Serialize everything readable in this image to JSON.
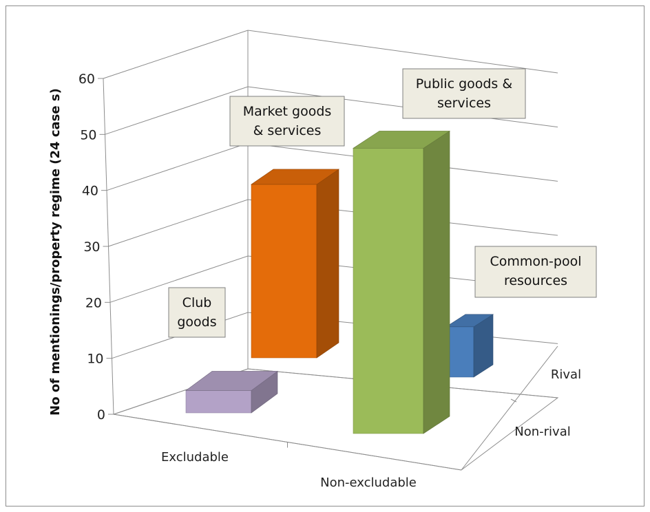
{
  "chart_data": {
    "type": "bar",
    "subtype": "3d-column",
    "ylabel": "No of mentionings/property regime  (24 case s)",
    "yticks": [
      "0",
      "10",
      "20",
      "30",
      "40",
      "50",
      "60"
    ],
    "ylim": [
      0,
      60
    ],
    "x_categories": [
      "Excludable",
      "Non-excludable"
    ],
    "depth_categories": [
      "Non-rival",
      "Rival"
    ],
    "grid": true,
    "bars": [
      {
        "x": "Excludable",
        "depth": "Non-rival",
        "value": 4,
        "label": [
          "Club",
          "goods"
        ],
        "color": "#b3a2c7"
      },
      {
        "x": "Excludable",
        "depth": "Rival",
        "value": 31,
        "label": [
          "Market goods",
          "& services"
        ],
        "color": "#e46c0a"
      },
      {
        "x": "Non-excludable",
        "depth": "Non-rival",
        "value": 51,
        "label": [
          "Public goods &",
          "services"
        ],
        "color": "#9bbb59"
      },
      {
        "x": "Non-excludable",
        "depth": "Rival",
        "value": 9,
        "label": [
          "Common-pool",
          "resources"
        ],
        "color": "#4a7ebb"
      }
    ]
  }
}
